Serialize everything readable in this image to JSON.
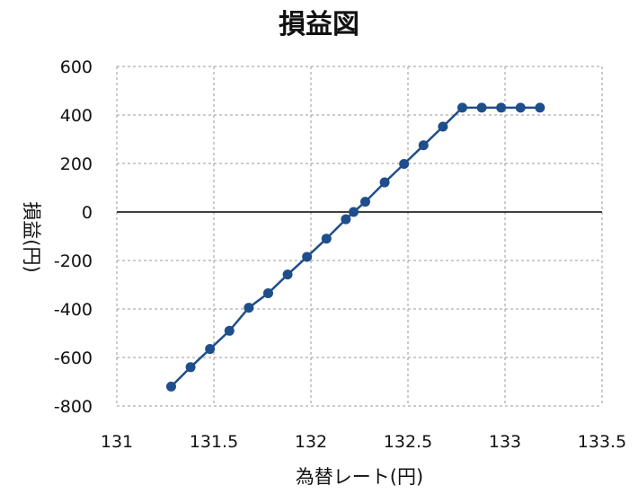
{
  "chart_data": {
    "type": "line",
    "title": "損益図",
    "xlabel": "為替レート(円)",
    "ylabel": "損益(円)",
    "xlim": [
      131,
      133.5
    ],
    "ylim": [
      -800,
      600
    ],
    "x_ticks": [
      131,
      131.5,
      132,
      132.5,
      133,
      133.5
    ],
    "y_ticks": [
      600,
      400,
      200,
      0,
      -200,
      -400,
      -600,
      -800
    ],
    "grid": true,
    "grid_style": "dashed",
    "zero_line": true,
    "legend": "none",
    "colors": {
      "line": "#1f4e8c",
      "marker": "#1f4e8c",
      "negative_tick": "#c00000",
      "grid": "#999999",
      "zero_line": "#000000"
    },
    "series": [
      {
        "x": [
          131.28,
          131.38,
          131.48,
          131.58,
          131.68,
          131.78,
          131.88,
          131.98,
          132.08,
          132.18,
          132.22,
          132.28,
          132.38,
          132.48,
          132.58,
          132.68,
          132.78,
          132.88,
          132.98,
          133.08,
          133.18
        ],
        "y": [
          -720,
          -640,
          -565,
          -490,
          -395,
          -335,
          -258,
          -185,
          -110,
          -30,
          0,
          42,
          122,
          198,
          275,
          352,
          430,
          430,
          430,
          430,
          430
        ]
      }
    ]
  }
}
